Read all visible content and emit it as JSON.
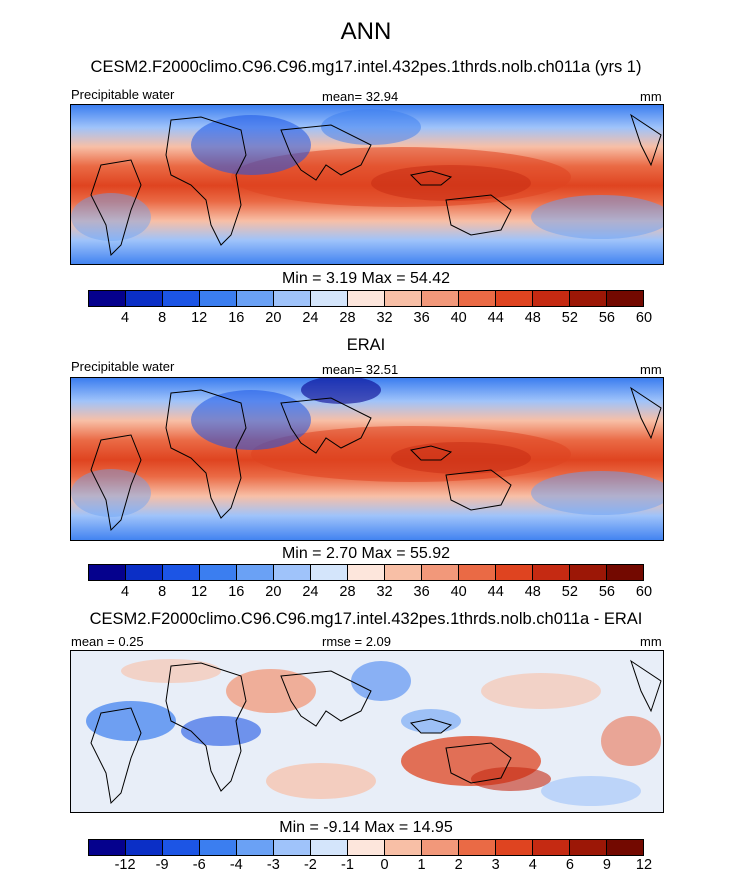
{
  "figure": {
    "title": "ANN"
  },
  "palette": [
    "#05018d",
    "#0b2fc6",
    "#1c55e5",
    "#3b7ef0",
    "#6aa1f5",
    "#9fc3fa",
    "#d4e5fb",
    "#fde6dc",
    "#f8bfa6",
    "#f2987a",
    "#ea6a45",
    "#df4420",
    "#c52a12",
    "#9c1706",
    "#730900"
  ],
  "panels": [
    {
      "id": "model",
      "subtitle": "CESM2.F2000climo.C96.C96.mg17.intel.432pes.1thrds.nolb.ch011a (yrs 1)",
      "left_label": "Precipitable water",
      "center_label": "mean=  32.94",
      "right_label": "mm",
      "minmax": "Min =   3.19 Max =  54.42",
      "ticks": [
        "4",
        "8",
        "12",
        "16",
        "20",
        "24",
        "28",
        "32",
        "36",
        "40",
        "44",
        "48",
        "52",
        "56",
        "60"
      ]
    },
    {
      "id": "obs",
      "subtitle": "ERAI",
      "left_label": "Precipitable water",
      "center_label": "mean=  32.51",
      "right_label": "mm",
      "minmax": "Min =   2.70 Max =  55.92",
      "ticks": [
        "4",
        "8",
        "12",
        "16",
        "20",
        "24",
        "28",
        "32",
        "36",
        "40",
        "44",
        "48",
        "52",
        "56",
        "60"
      ]
    },
    {
      "id": "diff",
      "subtitle": "CESM2.F2000climo.C96.C96.mg17.intel.432pes.1thrds.nolb.ch011a - ERAI",
      "left_label": "mean =   0.25",
      "center_label": "rmse =   2.09",
      "right_label": "mm",
      "minmax": "Min =  -9.14 Max =  14.95",
      "ticks": [
        "-12",
        "-9",
        "-6",
        "-4",
        "-3",
        "-2",
        "-1",
        "0",
        "1",
        "2",
        "3",
        "4",
        "6",
        "9",
        "12"
      ]
    }
  ]
}
